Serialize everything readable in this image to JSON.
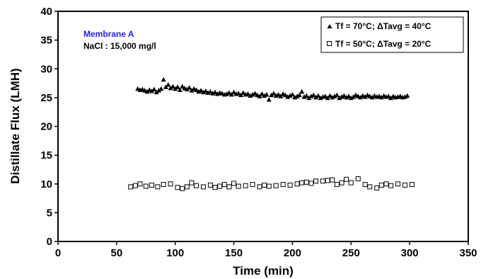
{
  "chart_data": {
    "type": "scatter",
    "xlabel": "Time (min)",
    "ylabel": "Distillate Flux (LMH)",
    "xlim": [
      0,
      350
    ],
    "ylim": [
      0,
      40
    ],
    "x_ticks": [
      0,
      50,
      100,
      150,
      200,
      250,
      300,
      350
    ],
    "y_ticks": [
      0,
      5,
      10,
      15,
      20,
      25,
      30,
      35,
      40
    ],
    "grid": false,
    "legend_position": "top-right",
    "annotations": [
      "Membrane A",
      "NaCl : 15,000 mg/l"
    ],
    "series": [
      {
        "name": "Tf = 70°C; ΔTavg = 40°C",
        "marker": "filled-triangle",
        "x": [
          68,
          70,
          72,
          74,
          76,
          78,
          80,
          82,
          84,
          86,
          88,
          90,
          92,
          94,
          96,
          98,
          100,
          102,
          104,
          106,
          108,
          110,
          112,
          114,
          116,
          118,
          120,
          122,
          124,
          126,
          128,
          130,
          132,
          134,
          136,
          138,
          140,
          142,
          144,
          146,
          148,
          150,
          152,
          154,
          156,
          158,
          160,
          162,
          164,
          166,
          168,
          170,
          172,
          174,
          176,
          178,
          180,
          182,
          184,
          186,
          188,
          190,
          192,
          194,
          196,
          198,
          200,
          202,
          204,
          206,
          208,
          210,
          212,
          214,
          216,
          218,
          220,
          222,
          224,
          226,
          228,
          230,
          232,
          234,
          236,
          238,
          240,
          242,
          244,
          246,
          248,
          250,
          252,
          254,
          256,
          258,
          260,
          262,
          264,
          266,
          268,
          270,
          272,
          274,
          276,
          278,
          280,
          282,
          284,
          286,
          288,
          290,
          292,
          294,
          296,
          298
        ],
        "y": [
          26.5,
          26.3,
          26.4,
          26.2,
          26.0,
          26.3,
          26.1,
          26.4,
          25.9,
          26.2,
          26.5,
          28.1,
          26.8,
          27.2,
          26.6,
          26.9,
          26.5,
          26.8,
          26.3,
          26.9,
          26.6,
          26.4,
          26.7,
          26.2,
          26.5,
          26.3,
          26.0,
          26.2,
          25.9,
          26.1,
          25.8,
          26.0,
          25.7,
          25.9,
          25.6,
          25.8,
          25.7,
          25.5,
          25.6,
          25.8,
          25.5,
          25.9,
          25.6,
          25.7,
          25.4,
          25.8,
          25.5,
          25.6,
          25.3,
          25.5,
          25.7,
          25.4,
          25.2,
          25.6,
          25.3,
          25.5,
          24.6,
          25.4,
          25.7,
          25.3,
          25.5,
          25.2,
          25.6,
          25.4,
          25.1,
          25.3,
          25.5,
          25.0,
          25.2,
          25.4,
          26.0,
          25.1,
          25.3,
          24.9,
          25.2,
          25.4,
          25.0,
          25.3,
          24.9,
          25.1,
          25.2,
          24.9,
          25.3,
          25.0,
          25.2,
          25.4,
          24.9,
          25.1,
          25.3,
          25.0,
          25.2,
          24.9,
          25.1,
          25.4,
          25.2,
          25.0,
          25.3,
          25.1,
          25.4,
          25.2,
          25.0,
          25.3,
          25.1,
          25.2,
          25.0,
          25.3,
          25.1,
          25.2,
          24.9,
          25.2,
          25.0,
          25.1,
          25.2,
          25.0,
          25.1,
          25.3
        ]
      },
      {
        "name": "Tf = 50°C; ΔTavg = 20°C",
        "marker": "open-square",
        "x": [
          62,
          66,
          70,
          75,
          80,
          85,
          90,
          96,
          102,
          106,
          110,
          114,
          118,
          124,
          130,
          134,
          138,
          142,
          146,
          150,
          154,
          160,
          166,
          172,
          176,
          180,
          186,
          192,
          198,
          204,
          208,
          212,
          216,
          220,
          226,
          230,
          234,
          238,
          242,
          246,
          250,
          256,
          262,
          266,
          272,
          276,
          280,
          284,
          290,
          296,
          302
        ],
        "y": [
          9.5,
          9.7,
          10.0,
          9.6,
          9.8,
          9.5,
          9.9,
          10.0,
          9.4,
          9.2,
          9.5,
          10.2,
          9.7,
          9.5,
          9.8,
          9.4,
          9.6,
          9.9,
          9.5,
          10.1,
          9.6,
          9.7,
          9.9,
          9.5,
          9.8,
          9.6,
          9.7,
          9.9,
          9.8,
          10.0,
          10.2,
          10.3,
          10.1,
          10.5,
          10.5,
          10.6,
          10.7,
          9.9,
          10.2,
          10.8,
          10.2,
          10.9,
          9.9,
          9.5,
          9.3,
          9.8,
          10.0,
          9.7,
          10.0,
          9.8,
          9.9
        ]
      }
    ]
  }
}
